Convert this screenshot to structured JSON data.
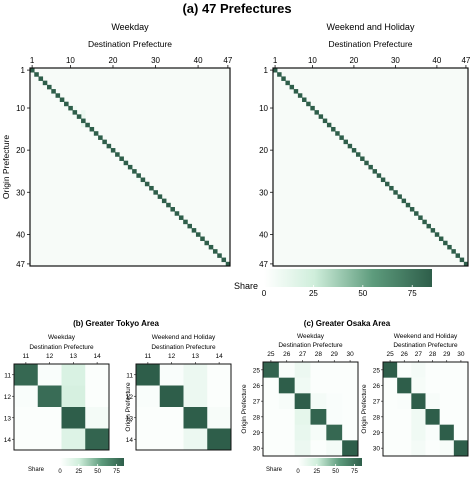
{
  "figure": {
    "main_title": "(a) 47 Prefectures",
    "legend_title": "Share"
  },
  "colors": {
    "low": "#f4fbf6",
    "mid": "#a8d8b6",
    "high": "#2e5e4a",
    "frame": "#111111"
  },
  "chart_data": [
    {
      "type": "heatmap",
      "panel": "a",
      "title": "Weekday",
      "xlabel": "Destination Prefecture",
      "ylabel": "Origin Prefecture",
      "n": 47,
      "xticks": [
        "1",
        "10",
        "20",
        "30",
        "40",
        "47"
      ],
      "yticks": [
        "1",
        "10",
        "20",
        "30",
        "40",
        "47"
      ],
      "diagonal_value": 85,
      "off_diagonal": [
        {
          "origin": 10,
          "destination": 11,
          "value": 8
        },
        {
          "origin": 11,
          "destination": 13,
          "value": 10
        },
        {
          "origin": 12,
          "destination": 13,
          "value": 10
        },
        {
          "origin": 14,
          "destination": 13,
          "value": 12
        },
        {
          "origin": 27,
          "destination": 26,
          "value": 6
        },
        {
          "origin": 28,
          "destination": 27,
          "value": 8
        },
        {
          "origin": 29,
          "destination": 27,
          "value": 6
        }
      ]
    },
    {
      "type": "heatmap",
      "panel": "a",
      "title": "Weekend and Holiday",
      "xlabel": "Destination Prefecture",
      "ylabel": "",
      "n": 47,
      "xticks": [
        "1",
        "10",
        "20",
        "30",
        "40",
        "47"
      ],
      "yticks": [
        "1",
        "10",
        "20",
        "30",
        "40",
        "47"
      ],
      "diagonal_value": 88,
      "off_diagonal": [
        {
          "origin": 11,
          "destination": 13,
          "value": 6
        },
        {
          "origin": 12,
          "destination": 13,
          "value": 6
        },
        {
          "origin": 14,
          "destination": 13,
          "value": 6
        },
        {
          "origin": 28,
          "destination": 27,
          "value": 5
        }
      ]
    },
    {
      "type": "heatmap",
      "panel": "b",
      "title": "Weekday",
      "xlabel": "Destination Prefecture",
      "ylabel": "",
      "categories": [
        "11",
        "12",
        "13",
        "14"
      ],
      "values": [
        [
          80,
          3,
          20,
          2
        ],
        [
          3,
          78,
          22,
          2
        ],
        [
          2,
          2,
          90,
          6
        ],
        [
          2,
          2,
          18,
          82
        ]
      ]
    },
    {
      "type": "heatmap",
      "panel": "b",
      "title": "Weekend and Holiday",
      "xlabel": "Destination Prefecture",
      "ylabel": "Origin Prefecture",
      "categories": [
        "11",
        "12",
        "13",
        "14"
      ],
      "values": [
        [
          88,
          3,
          10,
          2
        ],
        [
          3,
          85,
          10,
          2
        ],
        [
          2,
          2,
          92,
          4
        ],
        [
          2,
          2,
          10,
          88
        ]
      ]
    },
    {
      "type": "heatmap",
      "panel": "c",
      "title": "Weekday",
      "xlabel": "Destination Prefecture",
      "ylabel": "Origin Prefecture",
      "categories": [
        "25",
        "26",
        "27",
        "28",
        "29",
        "30"
      ],
      "values": [
        [
          82,
          3,
          10,
          2,
          2,
          2
        ],
        [
          2,
          86,
          8,
          2,
          2,
          2
        ],
        [
          2,
          4,
          88,
          6,
          3,
          2
        ],
        [
          2,
          2,
          14,
          82,
          3,
          2
        ],
        [
          2,
          2,
          12,
          5,
          80,
          2
        ],
        [
          2,
          2,
          10,
          2,
          6,
          86
        ]
      ]
    },
    {
      "type": "heatmap",
      "panel": "c",
      "title": "Weekend and Holiday",
      "xlabel": "Destination Prefecture",
      "ylabel": "Origin Prefecture",
      "categories": [
        "25",
        "26",
        "27",
        "28",
        "29",
        "30"
      ],
      "values": [
        [
          88,
          2,
          6,
          2,
          2,
          2
        ],
        [
          2,
          90,
          5,
          2,
          2,
          2
        ],
        [
          2,
          3,
          92,
          4,
          2,
          2
        ],
        [
          2,
          2,
          8,
          88,
          2,
          2
        ],
        [
          2,
          2,
          8,
          3,
          86,
          2
        ],
        [
          2,
          2,
          6,
          2,
          4,
          90
        ]
      ]
    }
  ],
  "legends": [
    {
      "label": "Share",
      "ticks": [
        "0",
        "25",
        "50",
        "75"
      ],
      "range": [
        0,
        85
      ]
    },
    {
      "label": "Share",
      "ticks": [
        "0",
        "25",
        "50",
        "75"
      ],
      "range": [
        0,
        85
      ]
    }
  ],
  "subfigures": {
    "b_title": "(b) Greater Tokyo Area",
    "c_title": "(c) Greater Osaka Area"
  }
}
